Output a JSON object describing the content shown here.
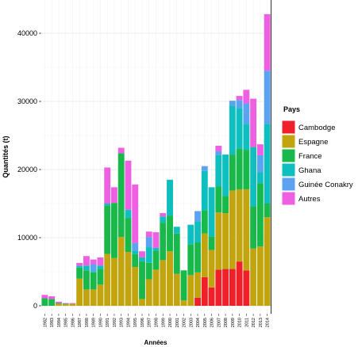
{
  "chart_data": {
    "type": "bar",
    "stacked": true,
    "xlabel": "Années",
    "ylabel": "Quantités (t)",
    "ylim": [
      0,
      45000
    ],
    "yticks": [
      0,
      10000,
      20000,
      30000,
      40000
    ],
    "grid": true,
    "legend_position": "right",
    "legend_title": "Pays",
    "categories": [
      "1982",
      "1983",
      "1984",
      "1985",
      "1986",
      "1987",
      "1988",
      "1989",
      "1990",
      "1991",
      "1992",
      "1993",
      "1994",
      "1995",
      "1996",
      "1997",
      "1998",
      "1999",
      "2000",
      "2001",
      "2002",
      "2003",
      "2004",
      "2005",
      "2006",
      "2007",
      "2008",
      "2009",
      "2010",
      "2011",
      "2012",
      "2013",
      "2014"
    ],
    "series": [
      {
        "name": "Cambodge",
        "color": "#F0202A",
        "values": [
          0,
          0,
          0,
          0,
          0,
          0,
          0,
          0,
          0,
          0,
          0,
          0,
          0,
          0,
          0,
          0,
          0,
          0,
          0,
          0,
          0,
          0,
          1200,
          4200,
          2700,
          5300,
          5400,
          5400,
          6500,
          5200,
          0,
          0,
          0
        ]
      },
      {
        "name": "Espagne",
        "color": "#C2A40E",
        "values": [
          0,
          0,
          300,
          200,
          300,
          4000,
          2400,
          2400,
          3100,
          7600,
          7000,
          10100,
          7900,
          5700,
          1000,
          3900,
          5300,
          6700,
          8000,
          4700,
          800,
          4500,
          3700,
          6400,
          5500,
          8400,
          8200,
          11500,
          10600,
          11900,
          8400,
          8700,
          13000
        ]
      },
      {
        "name": "France",
        "color": "#18B84A",
        "values": [
          1100,
          1000,
          100,
          100,
          0,
          1600,
          2800,
          2500,
          2300,
          7100,
          8100,
          12300,
          5000,
          1900,
          5500,
          2400,
          2800,
          5500,
          5200,
          5900,
          4400,
          4500,
          4400,
          3400,
          2000,
          3800,
          2500,
          5300,
          6000,
          5800,
          6200,
          9300,
          2000
        ]
      },
      {
        "name": "Ghana",
        "color": "#0FBFC0",
        "values": [
          0,
          0,
          0,
          0,
          0,
          300,
          700,
          200,
          500,
          300,
          0,
          0,
          1200,
          500,
          600,
          2300,
          400,
          900,
          5300,
          1000,
          0,
          2900,
          3100,
          5800,
          7200,
          4600,
          6100,
          7200,
          5900,
          3800,
          8700,
          1600,
          11700
        ]
      },
      {
        "name": "Guinée Conakry",
        "color": "#5BA3F0",
        "values": [
          0,
          0,
          0,
          0,
          0,
          0,
          0,
          1000,
          0,
          0,
          0,
          0,
          0,
          1100,
          0,
          1500,
          0,
          0,
          0,
          0,
          0,
          0,
          1500,
          700,
          0,
          600,
          0,
          700,
          1200,
          3000,
          0,
          2500,
          7800
        ]
      },
      {
        "name": "Autres",
        "color": "#EE5FE2",
        "values": [
          500,
          400,
          200,
          100,
          100,
          400,
          1400,
          700,
          1200,
          5300,
          2300,
          800,
          7200,
          8600,
          900,
          800,
          2300,
          500,
          0,
          0,
          0,
          0,
          0,
          0,
          0,
          800,
          0,
          0,
          600,
          2000,
          7100,
          1600,
          8300
        ]
      }
    ]
  }
}
